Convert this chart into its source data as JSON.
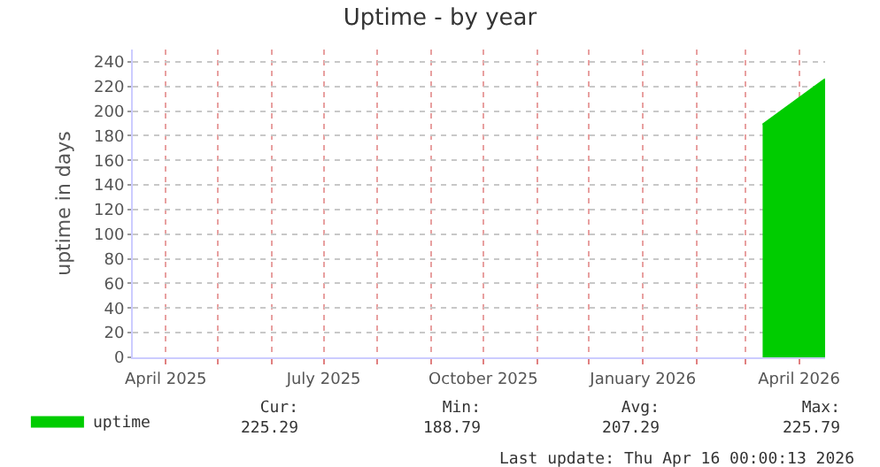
{
  "chart_data": {
    "type": "area",
    "title": "Uptime - by year",
    "ylabel": "uptime in days",
    "x": [
      "2026-03-11",
      "2026-04-16"
    ],
    "series": [
      {
        "name": "uptime",
        "color": "#00cc00",
        "values": [
          189,
          226
        ]
      }
    ],
    "xlim": [
      "2025-03-13",
      "2026-04-16"
    ],
    "xticks": [
      {
        "value": "2025-04-01",
        "label": "April 2025"
      },
      {
        "value": "2025-05-01",
        "label": null
      },
      {
        "value": "2025-06-01",
        "label": null
      },
      {
        "value": "2025-07-01",
        "label": "July 2025"
      },
      {
        "value": "2025-08-01",
        "label": null
      },
      {
        "value": "2025-09-01",
        "label": null
      },
      {
        "value": "2025-10-01",
        "label": "October 2025"
      },
      {
        "value": "2025-11-01",
        "label": null
      },
      {
        "value": "2025-12-01",
        "label": null
      },
      {
        "value": "2026-01-01",
        "label": "January 2026"
      },
      {
        "value": "2026-02-01",
        "label": null
      },
      {
        "value": "2026-03-01",
        "label": null
      },
      {
        "value": "2026-04-01",
        "label": "April 2026"
      }
    ],
    "ylim": [
      0,
      250
    ],
    "yticks": [
      0,
      20,
      40,
      60,
      80,
      100,
      120,
      140,
      160,
      180,
      200,
      220,
      240
    ],
    "grid": true,
    "legend": "bottom left",
    "annotations": [
      "Cur:\n225.29",
      "Min:\n188.79",
      "Avg:\n207.29",
      "Max:\n225.79",
      "Last update: Thu Apr 16 00:00:13 2026"
    ]
  }
}
